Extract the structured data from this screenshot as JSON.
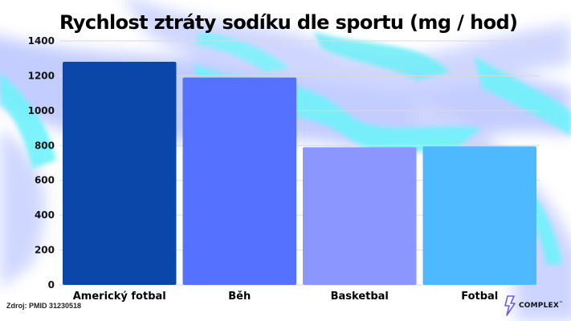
{
  "title": "Rychlost ztráty sodíku dle sportu (mg / hod)",
  "source": "Zdroj: PMID 31230518",
  "brand": {
    "name": "COMPLEX",
    "trademark": "™"
  },
  "chart_data": {
    "type": "bar",
    "title": "Rychlost ztráty sodíku dle sportu (mg / hod)",
    "categories": [
      "Americký fotbal",
      "Běh",
      "Basketbal",
      "Fotbal"
    ],
    "values": [
      1280,
      1190,
      790,
      795
    ],
    "colors": [
      "#0a47a9",
      "#5571ff",
      "#8b97ff",
      "#4fb9ff"
    ],
    "ylim": [
      0,
      1400
    ],
    "yticks": [
      0,
      200,
      400,
      600,
      800,
      1000,
      1200,
      1400
    ],
    "grid": true,
    "xlabel": "",
    "ylabel": ""
  }
}
